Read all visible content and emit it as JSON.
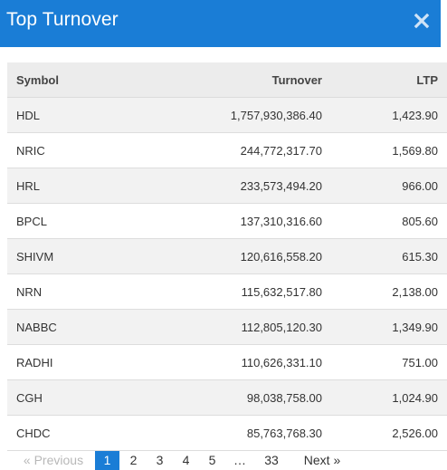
{
  "modal": {
    "title": "Top Turnover",
    "close_icon": "close-icon",
    "header_color": "#1a7dd6"
  },
  "table": {
    "headers": {
      "symbol": "Symbol",
      "turnover": "Turnover",
      "ltp": "LTP"
    },
    "rows": [
      {
        "symbol": "HDL",
        "turnover": "1,757,930,386.40",
        "ltp": "1,423.90"
      },
      {
        "symbol": "NRIC",
        "turnover": "244,772,317.70",
        "ltp": "1,569.80"
      },
      {
        "symbol": "HRL",
        "turnover": "233,573,494.20",
        "ltp": "966.00"
      },
      {
        "symbol": "BPCL",
        "turnover": "137,310,316.60",
        "ltp": "805.60"
      },
      {
        "symbol": "SHIVM",
        "turnover": "120,616,558.20",
        "ltp": "615.30"
      },
      {
        "symbol": "NRN",
        "turnover": "115,632,517.80",
        "ltp": "2,138.00"
      },
      {
        "symbol": "NABBC",
        "turnover": "112,805,120.30",
        "ltp": "1,349.90"
      },
      {
        "symbol": "RADHI",
        "turnover": "110,626,331.10",
        "ltp": "751.00"
      },
      {
        "symbol": "CGH",
        "turnover": "98,038,758.00",
        "ltp": "1,024.90"
      },
      {
        "symbol": "CHDC",
        "turnover": "85,763,768.30",
        "ltp": "2,526.00"
      }
    ]
  },
  "pagination": {
    "previous": "« Previous",
    "pages": [
      "1",
      "2",
      "3",
      "4",
      "5"
    ],
    "ellipsis": "…",
    "last_page": "33",
    "next": "Next »",
    "current_page": "1"
  }
}
